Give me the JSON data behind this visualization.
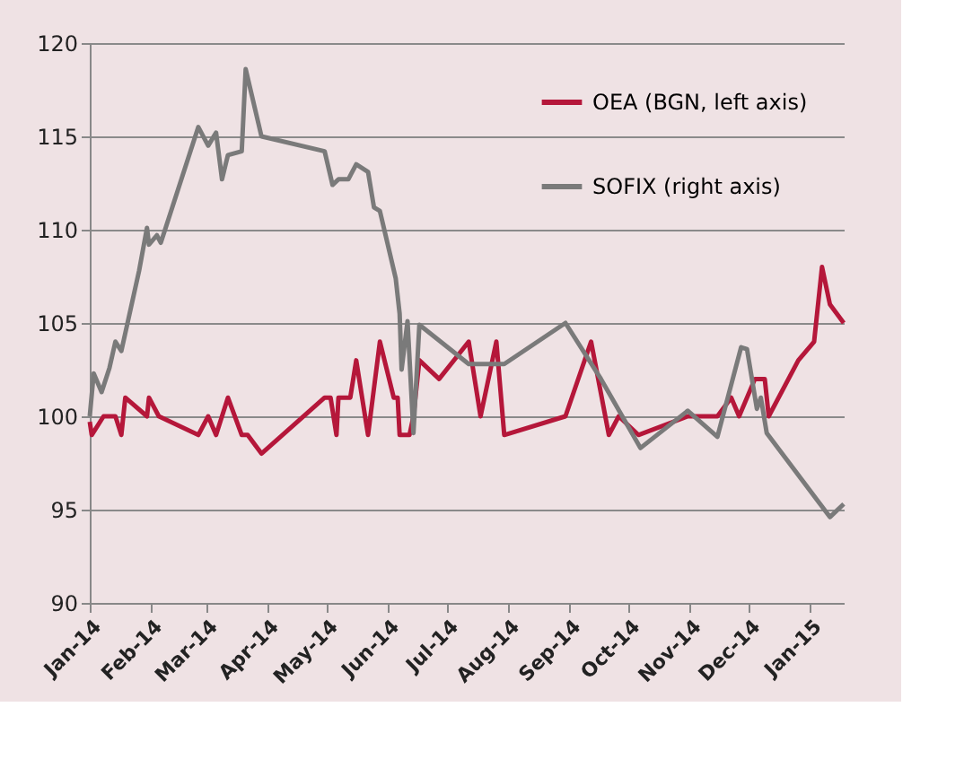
{
  "chart_data": {
    "type": "line",
    "xlim": [
      "2014-01-01",
      "2015-01-18"
    ],
    "ylim": [
      90,
      120
    ],
    "yticks": [
      90,
      95,
      100,
      105,
      110,
      115,
      120
    ],
    "xticks": [
      {
        "value": "2014-01-01",
        "label": "Jan-14"
      },
      {
        "value": "2014-02-01",
        "label": "Feb-14"
      },
      {
        "value": "2014-03-01",
        "label": "Mar-14"
      },
      {
        "value": "2014-04-01",
        "label": "Apr-14"
      },
      {
        "value": "2014-05-01",
        "label": "May-14"
      },
      {
        "value": "2014-06-01",
        "label": "Jun-14"
      },
      {
        "value": "2014-07-01",
        "label": "Jul-14"
      },
      {
        "value": "2014-08-01",
        "label": "Aug-14"
      },
      {
        "value": "2014-09-01",
        "label": "Sep-14"
      },
      {
        "value": "2014-10-01",
        "label": "Oct-14"
      },
      {
        "value": "2014-11-01",
        "label": "Nov-14"
      },
      {
        "value": "2014-12-01",
        "label": "Dec-14"
      },
      {
        "value": "2015-01-01",
        "label": "Jan-15"
      }
    ],
    "grid": "y",
    "legend": "top right",
    "marker": "none",
    "line_style": "solid",
    "series": [
      {
        "name": "OEA (BGN, left axis)",
        "color": "#b5173a",
        "x": [
          "2014-01-01",
          "2014-01-02",
          "2014-01-08",
          "2014-01-14",
          "2014-01-17",
          "2014-01-19",
          "2014-01-30",
          "2014-01-31",
          "2014-02-05",
          "2014-02-25",
          "2014-03-02",
          "2014-03-06",
          "2014-03-12",
          "2014-03-19",
          "2014-03-22",
          "2014-03-29",
          "2014-04-30",
          "2014-05-03",
          "2014-05-06",
          "2014-05-07",
          "2014-05-13",
          "2014-05-16",
          "2014-05-22",
          "2014-05-28",
          "2014-06-04",
          "2014-06-06",
          "2014-06-07",
          "2014-06-12",
          "2014-06-14",
          "2014-06-17",
          "2014-06-27",
          "2014-07-12",
          "2014-07-18",
          "2014-07-26",
          "2014-07-30",
          "2014-08-30",
          "2014-09-12",
          "2014-09-21",
          "2014-09-26",
          "2014-10-06",
          "2014-10-31",
          "2014-11-15",
          "2014-11-22",
          "2014-11-26",
          "2014-12-04",
          "2014-12-09",
          "2014-12-11",
          "2014-12-26",
          "2015-01-03",
          "2015-01-07",
          "2015-01-11",
          "2015-01-18"
        ],
        "values": [
          99.7,
          99,
          100,
          100,
          99,
          101,
          100,
          101,
          100,
          99,
          100,
          99,
          101,
          99,
          99,
          98,
          101,
          101,
          99,
          101,
          101,
          103,
          99,
          104,
          101,
          101,
          99,
          99,
          100,
          103,
          102,
          104,
          100,
          104,
          99,
          100,
          104,
          99,
          100,
          99,
          100,
          100,
          101,
          100,
          102,
          102,
          100,
          103,
          104,
          108,
          106,
          105
        ]
      },
      {
        "name": "SOFIX (right axis)",
        "color": "#7a7a7a",
        "x": [
          "2014-01-01",
          "2014-01-03",
          "2014-01-07",
          "2014-01-11",
          "2014-01-14",
          "2014-01-17",
          "2014-01-26",
          "2014-01-30",
          "2014-01-31",
          "2014-02-04",
          "2014-02-06",
          "2014-02-25",
          "2014-03-02",
          "2014-03-06",
          "2014-03-09",
          "2014-03-12",
          "2014-03-19",
          "2014-03-21",
          "2014-03-29",
          "2014-04-30",
          "2014-05-04",
          "2014-05-07",
          "2014-05-12",
          "2014-05-16",
          "2014-05-22",
          "2014-05-25",
          "2014-05-28",
          "2014-06-05",
          "2014-06-07",
          "2014-06-08",
          "2014-06-11",
          "2014-06-14",
          "2014-06-17",
          "2014-07-12",
          "2014-07-30",
          "2014-08-30",
          "2014-09-17",
          "2014-10-07",
          "2014-10-31",
          "2014-11-15",
          "2014-11-27",
          "2014-11-30",
          "2014-12-05",
          "2014-12-07",
          "2014-12-10",
          "2015-01-11",
          "2015-01-18"
        ],
        "values": [
          100,
          102.3,
          101.3,
          102.6,
          104,
          103.5,
          107.8,
          110.1,
          109.2,
          109.7,
          109.3,
          115.5,
          114.5,
          115.2,
          112.7,
          114,
          114.2,
          118.6,
          115,
          114.2,
          112.4,
          112.7,
          112.7,
          113.5,
          113.1,
          111.2,
          111,
          107.4,
          105.5,
          102.5,
          105.1,
          99.1,
          104.9,
          102.8,
          102.8,
          105,
          102,
          98.3,
          100.3,
          98.9,
          103.7,
          103.6,
          100.4,
          101,
          99.1,
          94.6,
          95.3
        ]
      }
    ]
  }
}
